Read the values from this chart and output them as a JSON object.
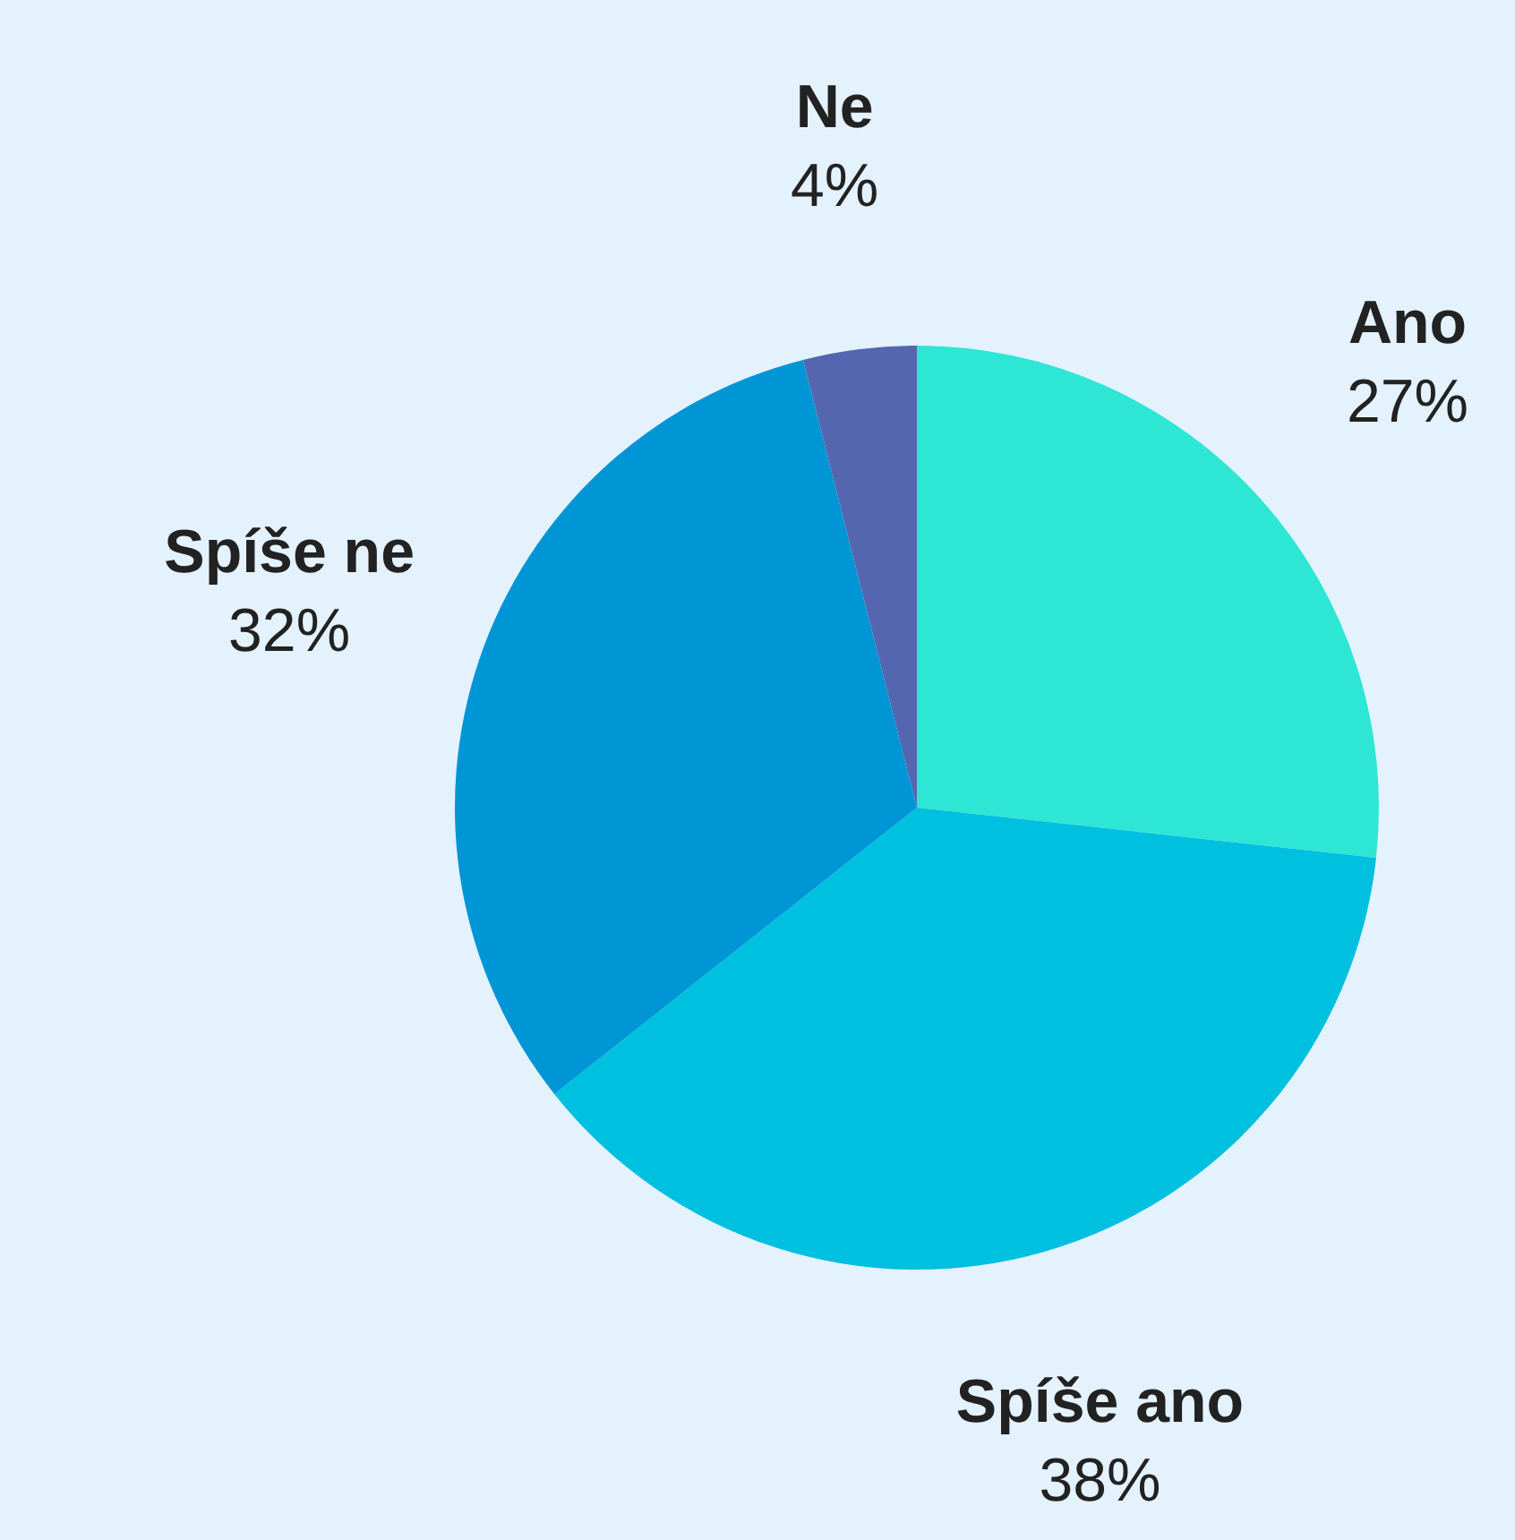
{
  "chart_data": {
    "type": "pie",
    "categories": [
      "Ano",
      "Spíše ano",
      "Spíše ne",
      "Ne"
    ],
    "values": [
      27,
      38,
      32,
      4
    ],
    "colors": [
      "#2ee6d4",
      "#00c0e0",
      "#0096d6",
      "#5566b0"
    ],
    "value_labels": [
      "27%",
      "38%",
      "32%",
      "4%"
    ],
    "legend": false
  }
}
